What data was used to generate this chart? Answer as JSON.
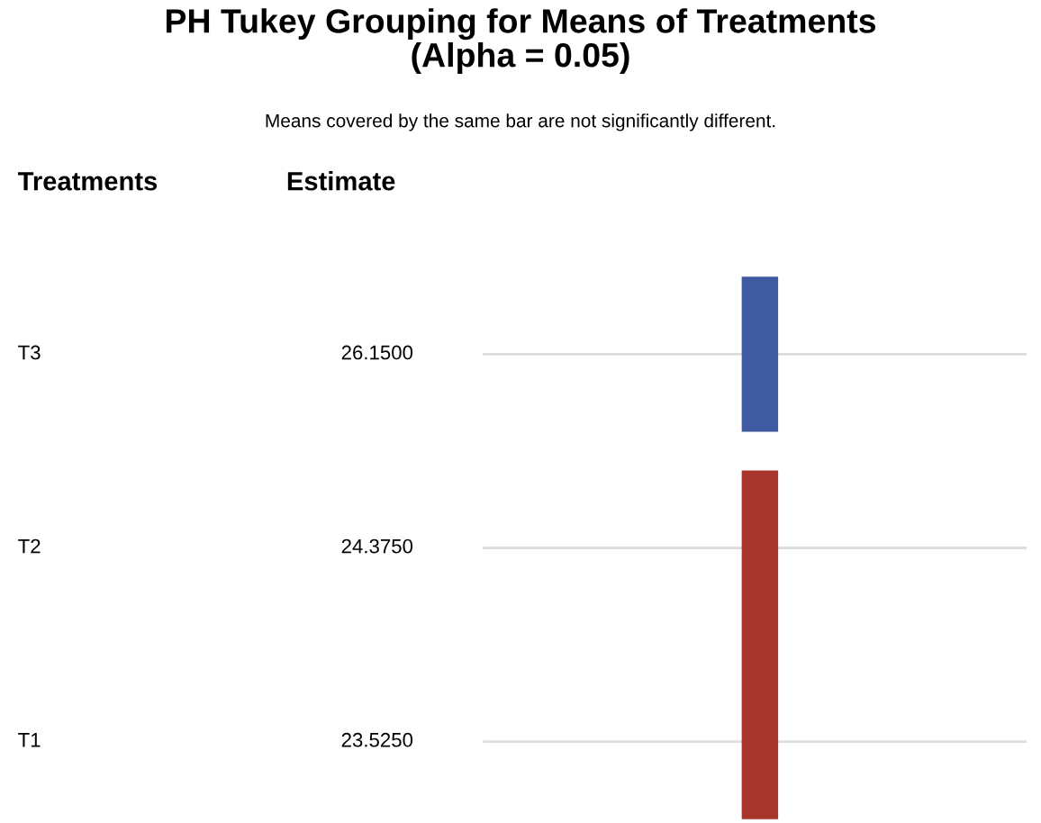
{
  "chart_data": {
    "type": "other",
    "title": "PH Tukey Grouping for Means of Treatments\n(Alpha = 0.05)",
    "subtitle": "Means covered by the same bar are not significantly different.",
    "annotations": [
      "Treatments",
      "Estimate"
    ],
    "categories": [
      "T3",
      "T2",
      "T1"
    ],
    "values": [
      26.15,
      24.375,
      23.525
    ],
    "value_labels": [
      "26.1500",
      "24.3750",
      "23.5250"
    ],
    "colors": [
      "#3f5aa0",
      "#a8352b",
      "#a8352b"
    ]
  }
}
